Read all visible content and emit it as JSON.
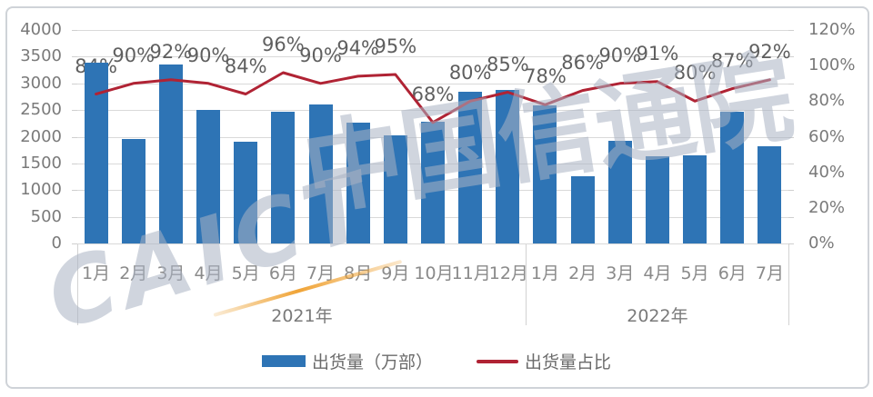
{
  "watermark": {
    "caict": "CAICT",
    "cn": "中国信通院"
  },
  "colors": {
    "bar": "#2E74B5",
    "line": "#B02334",
    "grid": "#D9D9D9",
    "axis_text": "#7A7A7A",
    "data_label_text": "#5F5F5F",
    "month_text": "#8A8A8A",
    "legend_text": "#6B6B6B",
    "card_border": "#CFD3D8",
    "watermark_text": "rgba(170,178,194,0.55)",
    "watermark_swoosh": "#F0A437"
  },
  "chart_data": {
    "type": "bar+line",
    "categories": [
      "1月",
      "2月",
      "3月",
      "4月",
      "5月",
      "6月",
      "7月",
      "8月",
      "9月",
      "10月",
      "11月",
      "12月",
      "1月",
      "2月",
      "3月",
      "4月",
      "5月",
      "6月",
      "7月"
    ],
    "year_groups": [
      {
        "label": "2021年",
        "months": 12
      },
      {
        "label": "2022年",
        "months": 7
      }
    ],
    "series": [
      {
        "name": "出货量（万部）",
        "type": "bar",
        "axis": "left",
        "values": [
          3390,
          1950,
          3360,
          2500,
          1910,
          2460,
          2600,
          2260,
          2020,
          2280,
          2850,
          2870,
          2580,
          1260,
          1920,
          1630,
          1650,
          2470,
          1820
        ]
      },
      {
        "name": "出货量占比",
        "type": "line",
        "axis": "right",
        "values_percent": [
          84,
          90,
          92,
          90,
          84,
          96,
          90,
          94,
          95,
          68,
          80,
          85,
          78,
          86,
          90,
          91,
          80,
          87,
          92
        ],
        "point_labels": [
          "84%",
          "90%",
          "92%",
          "90%",
          "84%",
          "96%",
          "90%",
          "94%",
          "95%",
          "68%",
          "80%",
          "85%",
          "78%",
          "86%",
          "90%",
          "91%",
          "80%",
          "87%",
          "92%"
        ]
      }
    ],
    "left_axis_ticks": [
      "4000",
      "3500",
      "3000",
      "2500",
      "2000",
      "1500",
      "1000",
      "500",
      "0"
    ],
    "right_axis_ticks": [
      "120%",
      "100%",
      "80%",
      "60%",
      "40%",
      "20%",
      "0%"
    ],
    "left_axis_range": [
      0,
      4000
    ],
    "right_axis_range": [
      0,
      120
    ],
    "grid": "horizontal",
    "legend_position": "bottom"
  }
}
